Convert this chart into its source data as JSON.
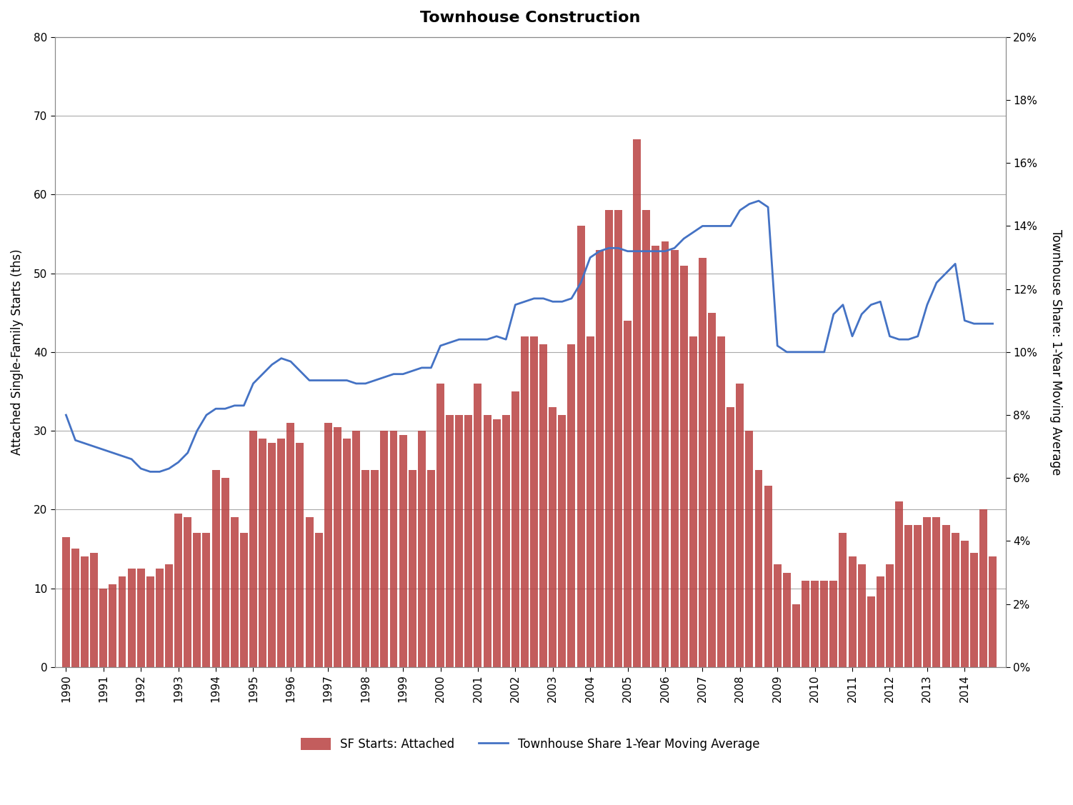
{
  "title": "Townhouse Construction",
  "ylabel_left": "Attached Single-Family Starts (ths)",
  "ylabel_right": "Townhouse Share: 1-Year Moving Average",
  "bar_color": "#B94040",
  "line_color": "#4472C4",
  "background_color": "#FFFFFF",
  "ylim_left": [
    0,
    80
  ],
  "ylim_right": [
    0,
    0.2
  ],
  "yticks_left": [
    0,
    10,
    20,
    30,
    40,
    50,
    60,
    70,
    80
  ],
  "yticks_right": [
    0.0,
    0.02,
    0.04,
    0.06,
    0.08,
    0.1,
    0.12,
    0.14,
    0.16,
    0.18,
    0.2
  ],
  "legend_bar": "SF Starts: Attached",
  "legend_line": "Townhouse Share 1-Year Moving Average",
  "bar_years": [
    1990,
    1990,
    1990,
    1990,
    1991,
    1991,
    1991,
    1991,
    1992,
    1992,
    1992,
    1992,
    1993,
    1993,
    1993,
    1993,
    1994,
    1994,
    1994,
    1994,
    1995,
    1995,
    1995,
    1995,
    1996,
    1996,
    1996,
    1996,
    1997,
    1997,
    1997,
    1997,
    1998,
    1998,
    1998,
    1998,
    1999,
    1999,
    1999,
    1999,
    2000,
    2000,
    2000,
    2000,
    2001,
    2001,
    2001,
    2001,
    2002,
    2002,
    2002,
    2002,
    2003,
    2003,
    2003,
    2003,
    2004,
    2004,
    2004,
    2004,
    2005,
    2005,
    2005,
    2005,
    2006,
    2006,
    2006,
    2006,
    2007,
    2007,
    2007,
    2007,
    2008,
    2008,
    2008,
    2008,
    2009,
    2009,
    2009,
    2009,
    2010,
    2010,
    2010,
    2010,
    2011,
    2011,
    2011,
    2011,
    2012,
    2012,
    2012,
    2012,
    2013,
    2013,
    2013,
    2013,
    2014,
    2014,
    2014,
    2014
  ],
  "bar_quarters": [
    0,
    1,
    2,
    3,
    0,
    1,
    2,
    3,
    0,
    1,
    2,
    3,
    0,
    1,
    2,
    3,
    0,
    1,
    2,
    3,
    0,
    1,
    2,
    3,
    0,
    1,
    2,
    3,
    0,
    1,
    2,
    3,
    0,
    1,
    2,
    3,
    0,
    1,
    2,
    3,
    0,
    1,
    2,
    3,
    0,
    1,
    2,
    3,
    0,
    1,
    2,
    3,
    0,
    1,
    2,
    3,
    0,
    1,
    2,
    3,
    0,
    1,
    2,
    3,
    0,
    1,
    2,
    3,
    0,
    1,
    2,
    3,
    0,
    1,
    2,
    3,
    0,
    1,
    2,
    3,
    0,
    1,
    2,
    3,
    0,
    1,
    2,
    3,
    0,
    1,
    2,
    3,
    0,
    1,
    2,
    3,
    0,
    1,
    2,
    3
  ],
  "bar_heights": [
    16.5,
    15.0,
    14.0,
    14.5,
    10.0,
    10.5,
    11.5,
    12.5,
    12.5,
    11.5,
    12.5,
    13.0,
    19.5,
    19.0,
    17.0,
    17.0,
    25.0,
    24.0,
    19.0,
    17.0,
    30.0,
    29.0,
    28.5,
    29.0,
    31.0,
    28.5,
    19.0,
    17.0,
    31.0,
    30.5,
    29.0,
    30.0,
    25.0,
    25.0,
    30.0,
    30.0,
    29.5,
    25.0,
    30.0,
    25.0,
    36.0,
    32.0,
    32.0,
    32.0,
    36.0,
    32.0,
    31.5,
    32.0,
    35.0,
    42.0,
    42.0,
    41.0,
    33.0,
    32.0,
    41.0,
    56.0,
    42.0,
    53.0,
    58.0,
    58.0,
    44.0,
    67.0,
    58.0,
    53.5,
    54.0,
    53.0,
    51.0,
    42.0,
    52.0,
    45.0,
    42.0,
    33.0,
    36.0,
    30.0,
    25.0,
    23.0,
    13.0,
    12.0,
    8.0,
    11.0,
    11.0,
    11.0,
    11.0,
    17.0,
    14.0,
    13.0,
    9.0,
    11.5,
    13.0,
    21.0,
    18.0,
    18.0,
    19.0,
    19.0,
    18.0,
    17.0,
    16.0,
    14.5,
    20.0,
    14.0
  ],
  "line_data_x": [
    1990.0,
    1990.25,
    1990.5,
    1990.75,
    1991.0,
    1991.25,
    1991.5,
    1991.75,
    1992.0,
    1992.25,
    1992.5,
    1992.75,
    1993.0,
    1993.25,
    1993.5,
    1993.75,
    1994.0,
    1994.25,
    1994.5,
    1994.75,
    1995.0,
    1995.25,
    1995.5,
    1995.75,
    1996.0,
    1996.25,
    1996.5,
    1996.75,
    1997.0,
    1997.25,
    1997.5,
    1997.75,
    1998.0,
    1998.25,
    1998.5,
    1998.75,
    1999.0,
    1999.25,
    1999.5,
    1999.75,
    2000.0,
    2000.25,
    2000.5,
    2000.75,
    2001.0,
    2001.25,
    2001.5,
    2001.75,
    2002.0,
    2002.25,
    2002.5,
    2002.75,
    2003.0,
    2003.25,
    2003.5,
    2003.75,
    2004.0,
    2004.25,
    2004.5,
    2004.75,
    2005.0,
    2005.25,
    2005.5,
    2005.75,
    2006.0,
    2006.25,
    2006.5,
    2006.75,
    2007.0,
    2007.25,
    2007.5,
    2007.75,
    2008.0,
    2008.25,
    2008.5,
    2008.75,
    2009.0,
    2009.25,
    2009.5,
    2009.75,
    2010.0,
    2010.25,
    2010.5,
    2010.75,
    2011.0,
    2011.25,
    2011.5,
    2011.75,
    2012.0,
    2012.25,
    2012.5,
    2012.75,
    2013.0,
    2013.25,
    2013.5,
    2013.75,
    2014.0,
    2014.25,
    2014.5,
    2014.75
  ],
  "line_data_y": [
    0.08,
    0.072,
    0.071,
    0.07,
    0.069,
    0.068,
    0.067,
    0.066,
    0.063,
    0.062,
    0.062,
    0.063,
    0.065,
    0.068,
    0.075,
    0.08,
    0.082,
    0.082,
    0.083,
    0.083,
    0.09,
    0.093,
    0.096,
    0.098,
    0.097,
    0.094,
    0.091,
    0.091,
    0.091,
    0.091,
    0.091,
    0.09,
    0.09,
    0.091,
    0.092,
    0.093,
    0.093,
    0.094,
    0.095,
    0.095,
    0.102,
    0.103,
    0.104,
    0.104,
    0.104,
    0.104,
    0.105,
    0.104,
    0.115,
    0.116,
    0.117,
    0.117,
    0.116,
    0.116,
    0.117,
    0.122,
    0.13,
    0.132,
    0.133,
    0.133,
    0.132,
    0.132,
    0.132,
    0.132,
    0.132,
    0.133,
    0.136,
    0.138,
    0.14,
    0.14,
    0.14,
    0.14,
    0.145,
    0.147,
    0.148,
    0.146,
    0.102,
    0.1,
    0.1,
    0.1,
    0.1,
    0.1,
    0.112,
    0.115,
    0.105,
    0.112,
    0.115,
    0.116,
    0.105,
    0.104,
    0.104,
    0.105,
    0.115,
    0.122,
    0.125,
    0.128,
    0.11,
    0.109,
    0.109,
    0.109
  ]
}
